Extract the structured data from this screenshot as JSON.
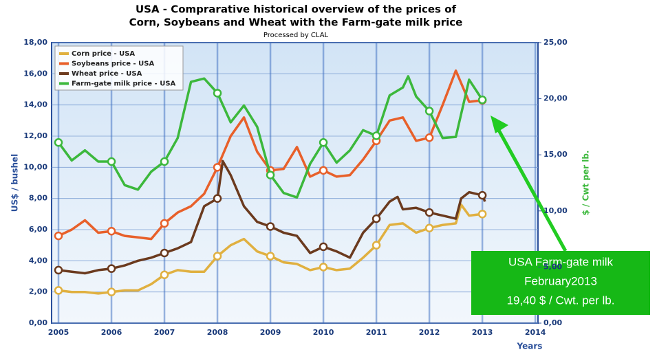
{
  "chart_data": {
    "type": "line",
    "title": [
      "USA - Comprarative historical overview of the prices of",
      "Corn, Soybeans and Wheat with the Farm-gate milk price"
    ],
    "subtitle": "Processed by CLAL",
    "y_label": "US$ / bushel",
    "y2_label": "$ / Cwt per lb.",
    "x_label": "Years",
    "xlim": [
      2004.87,
      2014.05
    ],
    "xticks": [
      2005,
      2006,
      2007,
      2008,
      2009,
      2010,
      2011,
      2012,
      2013,
      2014
    ],
    "ylim": [
      0,
      18
    ],
    "yticks": [
      {
        "value": 0,
        "label": "0,00"
      },
      {
        "value": 2,
        "label": "2,00"
      },
      {
        "value": 4,
        "label": "4,00"
      },
      {
        "value": 6,
        "label": "6,00"
      },
      {
        "value": 8,
        "label": "8,00"
      },
      {
        "value": 10,
        "label": "10,00"
      },
      {
        "value": 12,
        "label": "12,00"
      },
      {
        "value": 14,
        "label": "14,00"
      },
      {
        "value": 16,
        "label": "16,00"
      },
      {
        "value": 18,
        "label": "18,00"
      }
    ],
    "y2lim": [
      0,
      25
    ],
    "y2ticks": [
      {
        "value": 0,
        "label": "0,00"
      },
      {
        "value": 5,
        "label": "5,00"
      },
      {
        "value": 10,
        "label": "10,00"
      },
      {
        "value": 15,
        "label": "15,00"
      },
      {
        "value": 20,
        "label": "20,00"
      },
      {
        "value": 25,
        "label": "25,00"
      }
    ],
    "grid": true,
    "legend": "upper left",
    "series": [
      {
        "name": "Corn price - USA",
        "color": "#e0b040",
        "x": [
          2005,
          2005.25,
          2005.5,
          2005.75,
          2006,
          2006.25,
          2006.5,
          2006.75,
          2007,
          2007.25,
          2007.5,
          2007.75,
          2008,
          2008.25,
          2008.5,
          2008.75,
          2009,
          2009.25,
          2009.5,
          2009.75,
          2010,
          2010.25,
          2010.5,
          2010.75,
          2011,
          2011.25,
          2011.5,
          2011.75,
          2012,
          2012.25,
          2012.5,
          2012.6,
          2012.75,
          2013
        ],
        "values": [
          2.1,
          2.0,
          2.0,
          1.9,
          2.0,
          2.1,
          2.1,
          2.5,
          3.1,
          3.4,
          3.3,
          3.3,
          4.3,
          5.0,
          5.4,
          4.6,
          4.3,
          3.9,
          3.8,
          3.4,
          3.6,
          3.4,
          3.5,
          4.2,
          5.0,
          6.3,
          6.4,
          5.8,
          6.1,
          6.3,
          6.4,
          7.6,
          6.9,
          7.0
        ]
      },
      {
        "name": "Soybeans price - USA",
        "color": "#e8602a",
        "x": [
          2005,
          2005.25,
          2005.5,
          2005.75,
          2006,
          2006.25,
          2006.5,
          2006.75,
          2007,
          2007.25,
          2007.5,
          2007.75,
          2008,
          2008.25,
          2008.5,
          2008.75,
          2009,
          2009.25,
          2009.5,
          2009.75,
          2010,
          2010.25,
          2010.5,
          2010.75,
          2011,
          2011.25,
          2011.5,
          2011.75,
          2012,
          2012.25,
          2012.5,
          2012.75,
          2013
        ],
        "values": [
          5.6,
          6.0,
          6.6,
          5.8,
          5.9,
          5.6,
          5.5,
          5.4,
          6.4,
          7.1,
          7.5,
          8.3,
          10.0,
          12.0,
          13.2,
          11.0,
          9.8,
          9.9,
          11.3,
          9.4,
          9.8,
          9.4,
          9.5,
          10.5,
          11.7,
          13.0,
          13.2,
          11.7,
          11.9,
          14.0,
          16.2,
          14.2,
          14.3
        ]
      },
      {
        "name": "Wheat price - USA",
        "color": "#6b3a1e",
        "x": [
          2005,
          2005.25,
          2005.5,
          2005.75,
          2006,
          2006.25,
          2006.5,
          2006.75,
          2007,
          2007.25,
          2007.5,
          2007.75,
          2008,
          2008.1,
          2008.25,
          2008.5,
          2008.75,
          2009,
          2009.25,
          2009.5,
          2009.75,
          2010,
          2010.25,
          2010.5,
          2010.75,
          2011,
          2011.25,
          2011.4,
          2011.5,
          2011.75,
          2012,
          2012.25,
          2012.5,
          2012.6,
          2012.75,
          2013,
          2013.05
        ],
        "values": [
          3.4,
          3.3,
          3.2,
          3.4,
          3.5,
          3.7,
          4.0,
          4.2,
          4.5,
          4.8,
          5.2,
          7.5,
          8.0,
          10.4,
          9.5,
          7.5,
          6.5,
          6.2,
          5.8,
          5.6,
          4.5,
          4.9,
          4.6,
          4.2,
          5.8,
          6.7,
          7.8,
          8.1,
          7.3,
          7.4,
          7.1,
          6.9,
          6.7,
          8.0,
          8.4,
          8.2,
          7.8
        ]
      },
      {
        "name": "Farm-gate milk price - USA",
        "color": "#3cb83c",
        "axis": "y2",
        "x": [
          2005,
          2005.25,
          2005.5,
          2005.75,
          2006,
          2006.25,
          2006.5,
          2006.75,
          2007,
          2007.25,
          2007.5,
          2007.75,
          2008,
          2008.25,
          2008.5,
          2008.75,
          2009,
          2009.25,
          2009.5,
          2009.75,
          2010,
          2010.25,
          2010.5,
          2010.75,
          2011,
          2011.25,
          2011.5,
          2011.6,
          2011.75,
          2012,
          2012.25,
          2012.5,
          2012.75,
          2013
        ],
        "values": [
          16.1,
          14.5,
          15.4,
          14.4,
          14.4,
          12.3,
          11.9,
          13.5,
          14.4,
          16.5,
          21.5,
          21.8,
          20.5,
          17.9,
          19.4,
          17.5,
          13.2,
          11.6,
          11.2,
          14.2,
          16.1,
          14.3,
          15.4,
          17.2,
          16.7,
          20.3,
          21.0,
          22.0,
          20.2,
          18.9,
          16.5,
          16.6,
          21.7,
          19.9
        ]
      }
    ],
    "annotation": [
      "USA Farm-gate milk",
      "February2013",
      "19,40 $ / Cwt. per lb."
    ]
  }
}
